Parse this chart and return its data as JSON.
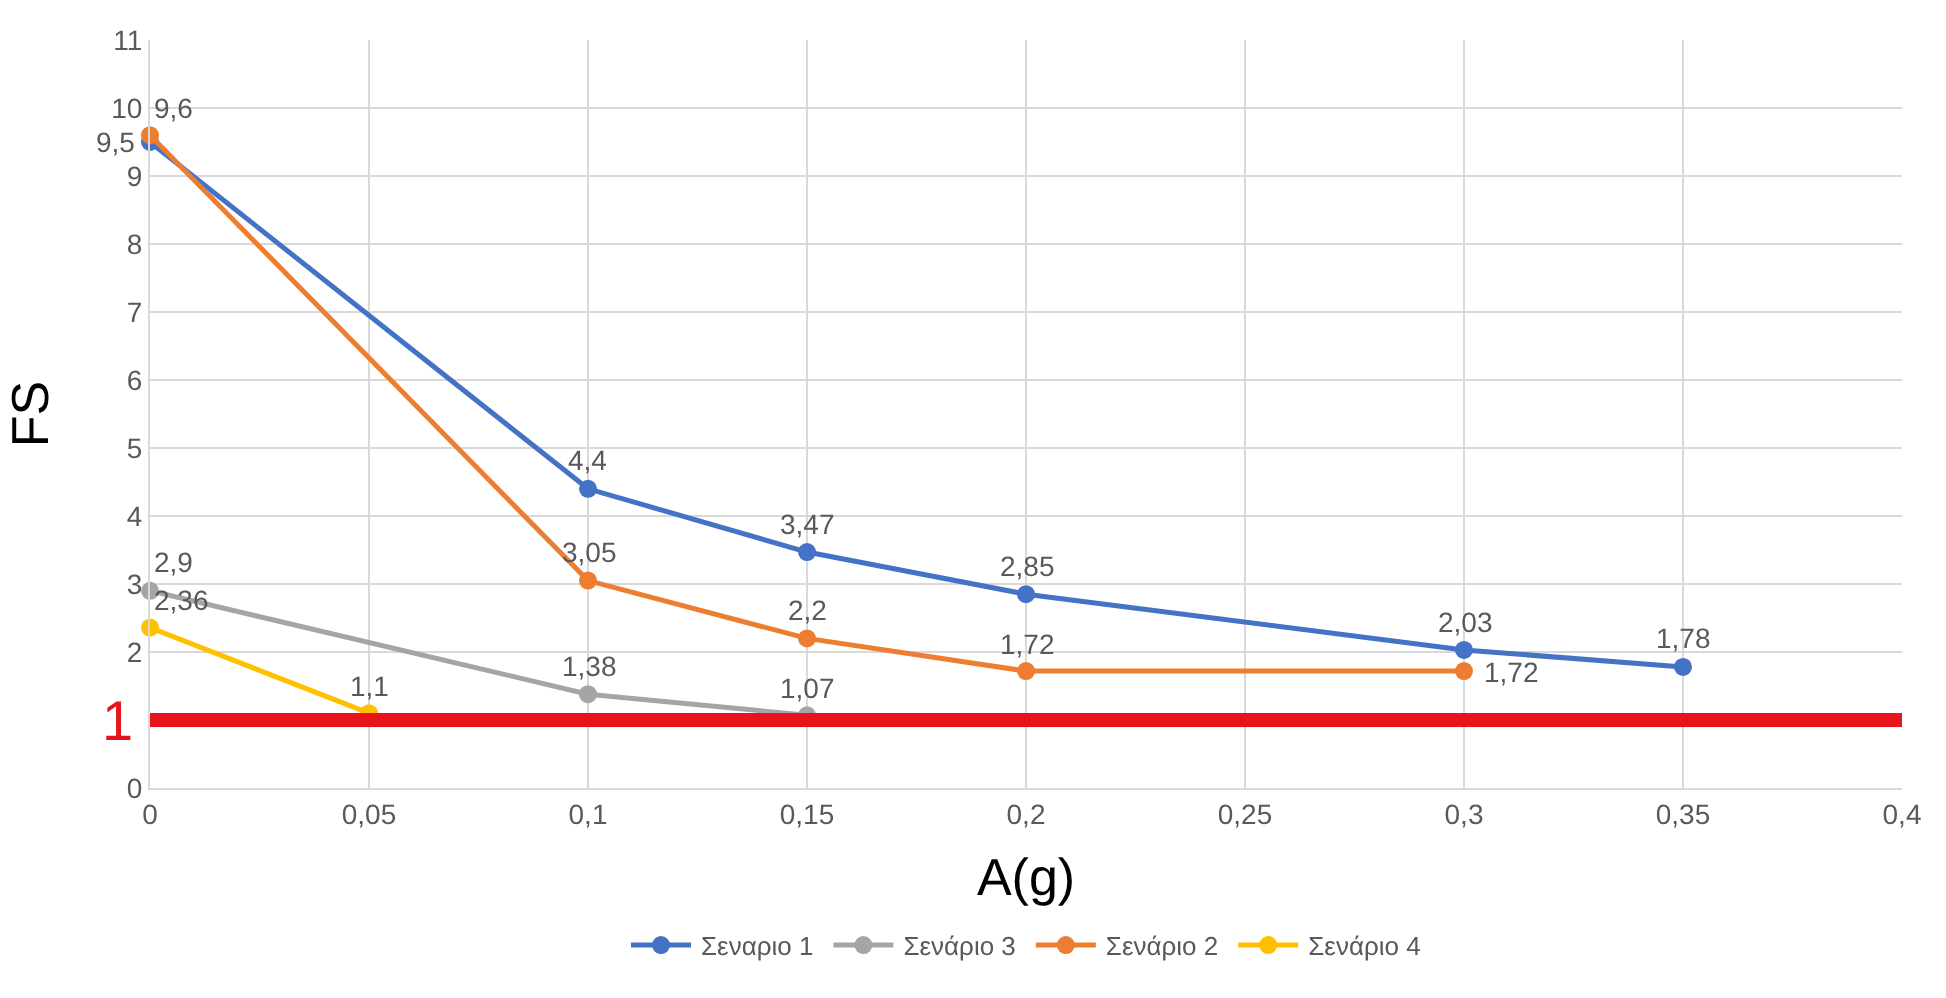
{
  "chart_data": {
    "type": "line",
    "xlabel": "A(g)",
    "ylabel": "FS",
    "xlim": [
      0,
      0.4
    ],
    "xticks": [
      0,
      {
        "value": 0.05,
        "label": "0,05"
      },
      {
        "value": 0.1,
        "label": "0,1"
      },
      {
        "value": 0.15,
        "label": "0,15"
      },
      {
        "value": 0.2,
        "label": "0,2"
      },
      {
        "value": 0.25,
        "label": "0,25"
      },
      {
        "value": 0.3,
        "label": "0,3"
      },
      {
        "value": 0.35,
        "label": "0,35"
      },
      {
        "value": 0.4,
        "label": "0,4"
      }
    ],
    "ylim": [
      0,
      11
    ],
    "yticks": [
      0,
      {
        "value": 1,
        "label": null
      },
      2,
      3,
      4,
      5,
      6,
      7,
      8,
      9,
      10,
      11
    ],
    "grid": true,
    "legend": "bottom",
    "marker": "circle",
    "line_style": "solid",
    "ref_lines": [
      {
        "axis": "y",
        "value": 1,
        "label": "1",
        "color": "#e8141c"
      }
    ],
    "series": [
      {
        "name": "Σεναριο 1",
        "color": "#4472c4",
        "x": [
          0,
          0.1,
          0.15,
          0.2,
          0.3,
          0.35
        ],
        "values": [
          9.5,
          4.4,
          3.47,
          2.85,
          2.03,
          1.78
        ],
        "value_labels": [
          "9,5",
          "4,4",
          "3,47",
          "2,85",
          "2,03",
          "1,78"
        ]
      },
      {
        "name": "Σενάριο 3",
        "color": "#a5a5a5",
        "x": [
          0,
          0.1,
          0.15
        ],
        "values": [
          2.9,
          1.38,
          1.07
        ],
        "value_labels": [
          "2,9",
          "1,38",
          "1,07"
        ]
      },
      {
        "name": "Σενάριο 2",
        "color": "#ed7d31",
        "x": [
          0,
          0.1,
          0.15,
          0.2,
          0.3
        ],
        "values": [
          9.6,
          3.05,
          2.2,
          1.72,
          1.72
        ],
        "value_labels": [
          "9,6",
          "3,05",
          "2,2",
          "1,72",
          "1,72"
        ]
      },
      {
        "name": "Σενάριο 4",
        "color": "#ffc000",
        "x": [
          0,
          0.05
        ],
        "values": [
          2.36,
          1.1
        ],
        "value_labels": [
          "2,36",
          "1,1"
        ]
      }
    ]
  }
}
